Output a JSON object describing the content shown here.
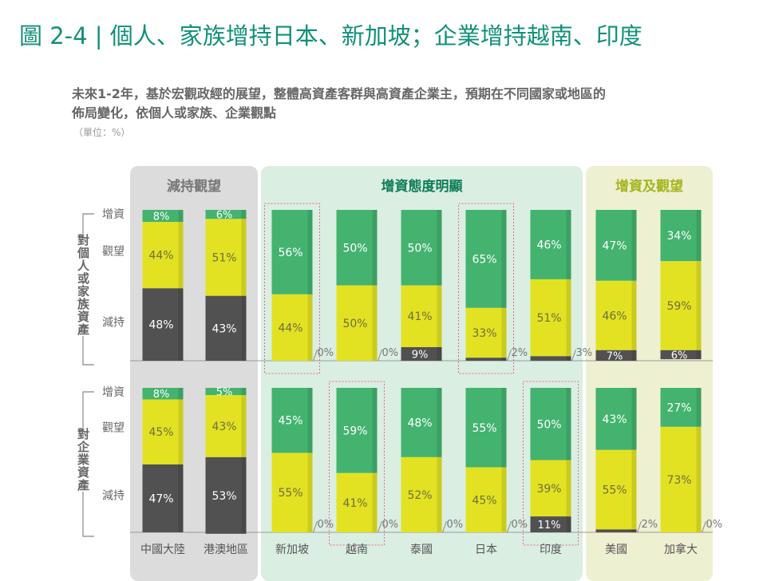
{
  "title": "圖 2-4 | 個人、家族增持日本、新加坡；企業增持越南、印度",
  "subtitle_line1": "未來1-2年，基於宏觀政經的展望，整體高資產客群與高資產企業主，預期在不同國家或地區的",
  "subtitle_line2": "佈局變化，依個人或家族、企業觀點",
  "unit": "（單位：%）",
  "colors": {
    "increase": "#43b36f",
    "watch": "#e2e223",
    "reduce": "#515151",
    "panel_reduce": "#dcdcdc",
    "panel_increase": "#daeee2",
    "panel_mixed": "#eef0d2"
  },
  "chart_data": {
    "type": "bar",
    "stacked": true,
    "groups": [
      {
        "label": "減持觀望",
        "color": "#777777",
        "categories": [
          0,
          1
        ]
      },
      {
        "label": "增資態度明顯",
        "color": "#0f7d57",
        "categories": [
          2,
          3,
          4,
          5,
          6
        ]
      },
      {
        "label": "增資及觀望",
        "color": "#a5b51d",
        "categories": [
          7,
          8
        ]
      }
    ],
    "categories": [
      "中國大陸",
      "港澳地區",
      "新加坡",
      "越南",
      "泰國",
      "日本",
      "印度",
      "美國",
      "加拿大"
    ],
    "series_labels": [
      "增資",
      "觀望",
      "減持"
    ],
    "panels": [
      {
        "label": "對個人或家族資產",
        "series": [
          {
            "name": "增資",
            "values": [
              8,
              6,
              56,
              50,
              50,
              65,
              46,
              47,
              34
            ]
          },
          {
            "name": "觀望",
            "values": [
              44,
              51,
              44,
              50,
              41,
              33,
              51,
              46,
              59
            ]
          },
          {
            "name": "減持",
            "values": [
              48,
              43,
              0,
              0,
              9,
              2,
              3,
              7,
              6
            ]
          }
        ],
        "highlighted": [
          "新加坡",
          "日本"
        ]
      },
      {
        "label": "對企業資產",
        "series": [
          {
            "name": "增資",
            "values": [
              8,
              5,
              45,
              59,
              48,
              55,
              50,
              43,
              27
            ]
          },
          {
            "name": "觀望",
            "values": [
              45,
              43,
              55,
              41,
              52,
              45,
              39,
              55,
              73
            ]
          },
          {
            "name": "減持",
            "values": [
              47,
              53,
              0,
              0,
              0,
              0,
              11,
              2,
              0
            ]
          }
        ],
        "highlighted": [
          "越南",
          "印度"
        ]
      }
    ],
    "ylim": [
      0,
      100
    ],
    "value_suffix": "%"
  }
}
